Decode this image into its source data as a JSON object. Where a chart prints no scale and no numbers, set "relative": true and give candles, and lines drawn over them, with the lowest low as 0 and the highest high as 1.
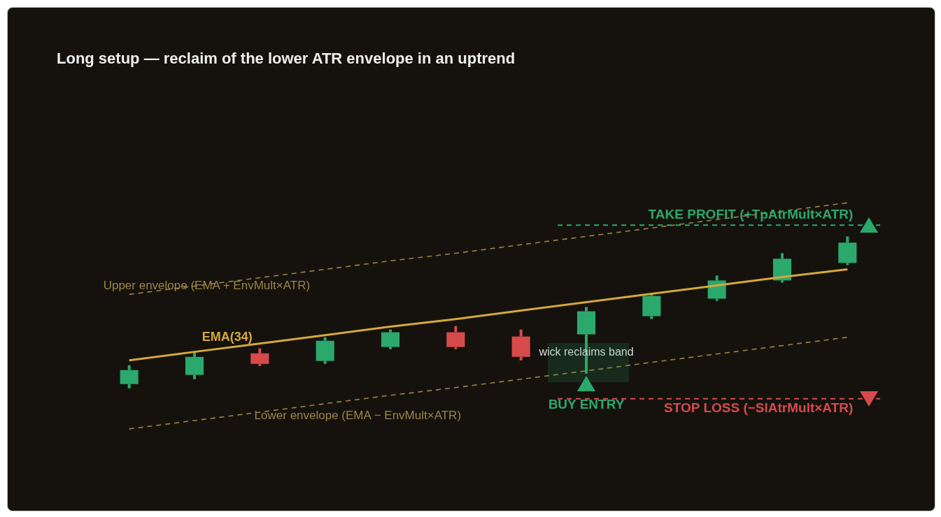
{
  "chart_data": {
    "type": "candlestick",
    "title": "Long setup — reclaim of the lower ATR envelope in an uptrend",
    "relative": true,
    "tick_labels": false,
    "categories": [
      null,
      null,
      null,
      null,
      null,
      null,
      null,
      null,
      null,
      null,
      null,
      null
    ],
    "ohlc": [
      [
        0.028,
        0.152,
        0,
        0.12
      ],
      [
        0.088,
        0.24,
        0.06,
        0.207
      ],
      [
        0.23,
        0.263,
        0.147,
        0.161
      ],
      [
        0.18,
        0.336,
        0.161,
        0.313
      ],
      [
        0.272,
        0.387,
        0.258,
        0.369
      ],
      [
        0.369,
        0.41,
        0.258,
        0.272
      ],
      [
        0.341,
        0.387,
        0.184,
        0.207
      ],
      [
        0.355,
        0.535,
        0.097,
        0.507
      ],
      [
        0.475,
        0.627,
        0.456,
        0.608
      ],
      [
        0.59,
        0.742,
        0.576,
        0.71
      ],
      [
        0.71,
        0.889,
        0.696,
        0.853
      ],
      [
        0.825,
        1,
        0.811,
        0.959
      ]
    ],
    "colors": [
      "#2ba86c",
      "#2ba86c",
      "#d64a4c",
      "#2ba86c",
      "#2ba86c",
      "#d64a4c",
      "#d64a4c",
      "#2ba86c",
      "#2ba86c",
      "#2ba86c",
      "#2ba86c",
      "#2ba86c"
    ],
    "series": [
      {
        "type": "line",
        "name": "Upper envelope (EMA + EnvMult×ATR)",
        "color": "#9c8446",
        "line_style": "dashed",
        "values": [
          0.618,
          0.673,
          0.728,
          0.783,
          0.839,
          0.889,
          0.945,
          1.0,
          1.055,
          1.111,
          1.166,
          1.221
        ]
      },
      {
        "type": "line",
        "name": "EMA(34)",
        "color": "#d4a93c",
        "line_style": "solid",
        "values": [
          0.184,
          0.24,
          0.295,
          0.35,
          0.406,
          0.456,
          0.512,
          0.567,
          0.622,
          0.677,
          0.733,
          0.783
        ]
      },
      {
        "type": "line",
        "name": "Lower envelope (EMA − EnvMult×ATR)",
        "color": "#9c8446",
        "line_style": "dashed",
        "values": [
          -0.267,
          -0.212,
          -0.157,
          -0.101,
          -0.046,
          0.005,
          0.06,
          0.115,
          0.171,
          0.226,
          0.281,
          0.336
        ]
      }
    ],
    "ref_lines": [
      {
        "axis": "y",
        "value": 1.074,
        "label": "TAKE PROFIT (+TpAtrMult×ATR)",
        "color": "#2ba86c",
        "line_style": "dashed"
      },
      {
        "axis": "y",
        "value": -0.069,
        "label": "STOP LOSS (−SlAtrMult×ATR)",
        "color": "#d64a4c",
        "line_style": "dashed"
      }
    ],
    "annotations": [
      "wick reclaims band",
      "BUY ENTRY"
    ]
  }
}
